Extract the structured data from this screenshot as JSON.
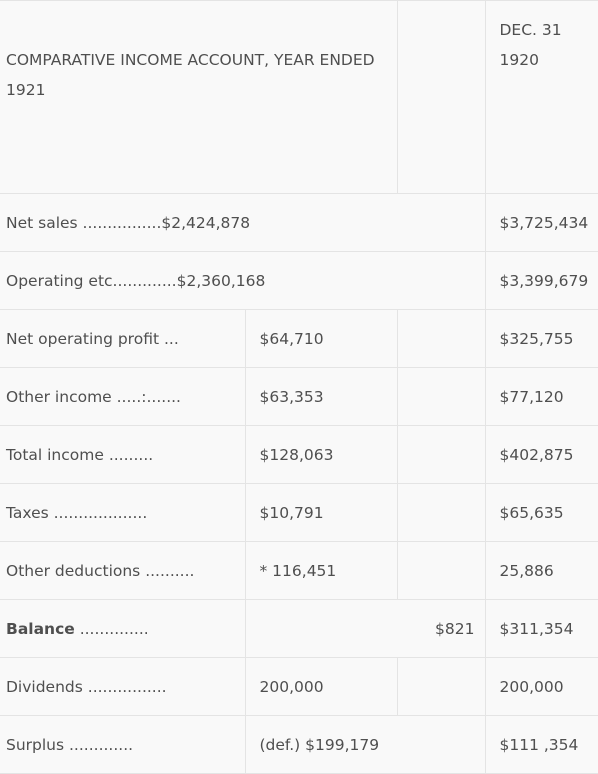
{
  "header": {
    "title": "COMPARATIVE INCOME ACCOUNT, YEAR ENDED 1921",
    "date_line1": "DEC. 31",
    "date_line2": "1920"
  },
  "rows": [
    {
      "label": "Net sales ................$2,424,878",
      "y1921": "",
      "y1920": "$3,725,434"
    },
    {
      "label": "Operating etc.............$2,360,168",
      "y1921": "",
      "y1920": "$3,399,679"
    },
    {
      "label": "Net operating profit ...",
      "y1921": "$64,710",
      "y1920": "$325,755"
    },
    {
      "label": "Other income .....:.......",
      "y1921": "$63,353",
      "y1920": "$77,120"
    },
    {
      "label": "Total income .........",
      "y1921": "$128,063",
      "y1920": "$402,875"
    },
    {
      "label": "Taxes ...................",
      "y1921": "$10,791",
      "y1920": "$65,635"
    },
    {
      "label": "Other deductions ..........",
      "y1921": "* 116,451",
      "y1920": "25,886"
    },
    {
      "label": "Balance",
      "label_suffix": " ..............",
      "y1921": "$821",
      "y1920": "$311,354"
    },
    {
      "label": "Dividends ................",
      "y1921": "200,000",
      "y1920": "200,000"
    },
    {
      "label": "Surplus .............",
      "y1921": "(def.) $199,179",
      "y1920": "$111 ,354"
    }
  ]
}
